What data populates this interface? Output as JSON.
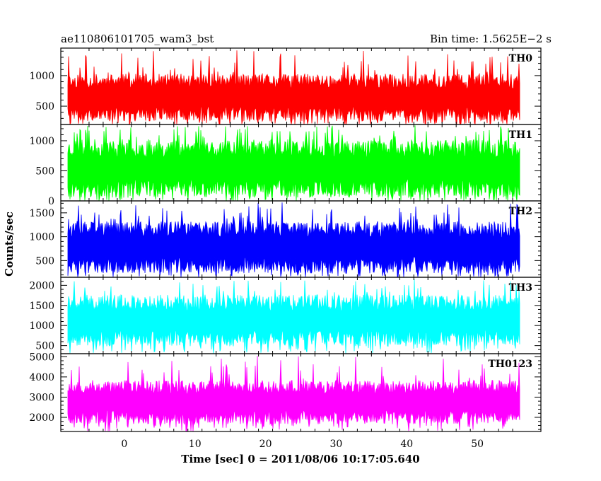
{
  "header": {
    "left": "ae110806101705_wam3_bst",
    "right": "Bin time: 1.5625E−2 s"
  },
  "chart_data": {
    "type": "line",
    "title": "ae110806101705_wam3_bst",
    "subtitle": "Bin time: 1.5625E−2 s",
    "xlabel": "Time [sec] 0 = 2011/08/06 10:17:05.640",
    "ylabel": "Counts/sec",
    "xlim": [
      -9,
      59
    ],
    "xticks": [
      0,
      10,
      20,
      30,
      40,
      50
    ],
    "x_range": [
      -8,
      56
    ],
    "grid": false,
    "legend": "none",
    "panels": [
      {
        "label": "TH0",
        "color": "#ff0000",
        "ylim": [
          200,
          1450
        ],
        "yticks": [
          500,
          1000
        ],
        "typical_low": 230,
        "typical_high": 1050,
        "peak": 1420,
        "seed": 11
      },
      {
        "label": "TH1",
        "color": "#00ff00",
        "ylim": [
          0,
          1270
        ],
        "yticks": [
          0,
          500,
          1000
        ],
        "typical_low": 30,
        "typical_high": 1050,
        "peak": 1260,
        "seed": 23
      },
      {
        "label": "TH2",
        "color": "#0000ff",
        "ylim": [
          150,
          1750
        ],
        "yticks": [
          500,
          1000,
          1500
        ],
        "typical_low": 200,
        "typical_high": 1350,
        "peak": 1720,
        "seed": 37
      },
      {
        "label": "TH3",
        "color": "#00ffff",
        "ylim": [
          300,
          2200
        ],
        "yticks": [
          500,
          1000,
          1500,
          2000
        ],
        "typical_low": 450,
        "typical_high": 1800,
        "peak": 2150,
        "seed": 41
      },
      {
        "label": "TH0123",
        "color": "#ff00ff",
        "ylim": [
          1300,
          5150
        ],
        "yticks": [
          2000,
          3000,
          4000,
          5000
        ],
        "typical_low": 1600,
        "typical_high": 3900,
        "peak": 5050,
        "seed": 53
      }
    ]
  }
}
